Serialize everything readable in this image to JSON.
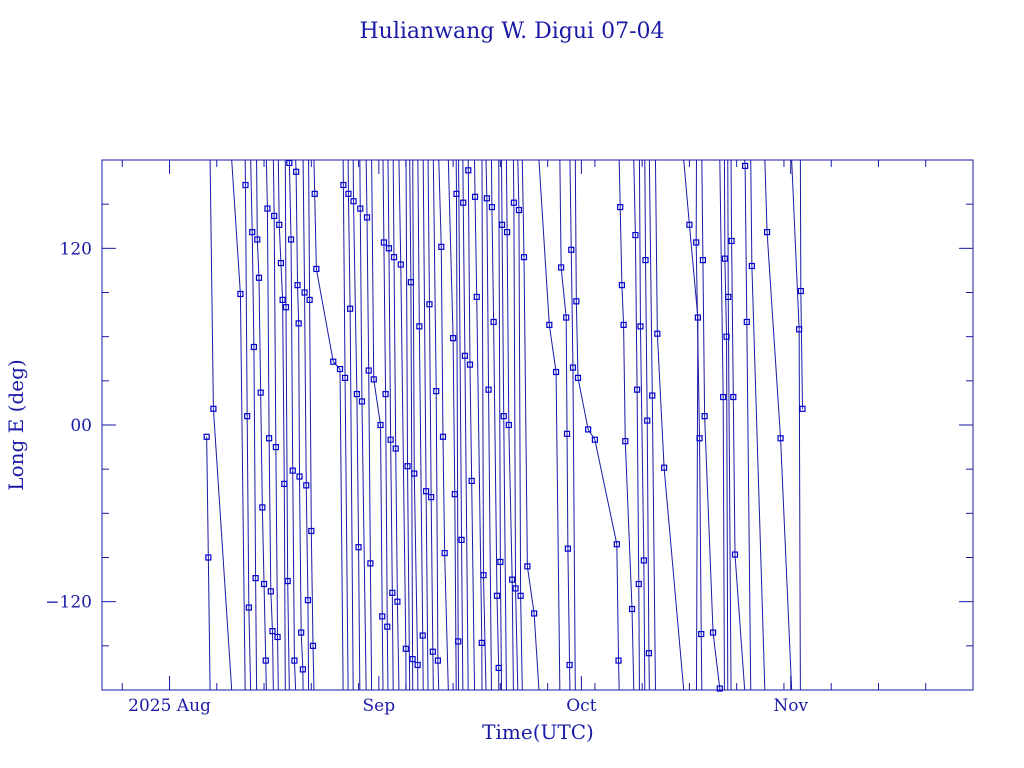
{
  "chart_data": {
    "type": "scatter",
    "title": "Hulianwang W. Digui 07-04",
    "xlabel": "Time(UTC)",
    "ylabel": "Long E (deg)",
    "x_range": [
      "2025-07-22",
      "2025-11-28"
    ],
    "ylim": [
      -180,
      180
    ],
    "y_ticks": [
      -120,
      0,
      120
    ],
    "y_tick_labels": [
      "−120",
      "00",
      "120"
    ],
    "x_ticks": [
      {
        "date": "2025-08-01",
        "label": "2025 Aug"
      },
      {
        "date": "2025-09-01",
        "label": "Sep"
      },
      {
        "date": "2025-10-01",
        "label": "Oct"
      },
      {
        "date": "2025-11-01",
        "label": "Nov"
      }
    ],
    "line_wraps_at_boundaries": true,
    "colors": {
      "axes": "#1a1aa6",
      "line": "#1a1aa6",
      "marker": "#0000cc"
    },
    "series": [
      {
        "points": [
          [
            "2025-08-06T12",
            -8
          ],
          [
            "2025-08-06T18",
            -90
          ],
          [
            "2025-08-07T12",
            11
          ],
          [
            "2025-08-11T12",
            89
          ],
          [
            "2025-08-12T06",
            163
          ],
          [
            "2025-08-12T12",
            6
          ],
          [
            "2025-08-12T18",
            -124
          ],
          [
            "2025-08-13T06",
            131
          ],
          [
            "2025-08-13T12",
            53
          ],
          [
            "2025-08-13T18",
            -104
          ],
          [
            "2025-08-14T00",
            126
          ],
          [
            "2025-08-14T06",
            100
          ],
          [
            "2025-08-14T12",
            22
          ],
          [
            "2025-08-14T18",
            -56
          ],
          [
            "2025-08-15T00",
            -108
          ],
          [
            "2025-08-15T06",
            -160
          ],
          [
            "2025-08-15T12",
            147
          ],
          [
            "2025-08-15T18",
            -9
          ],
          [
            "2025-08-16T00",
            -113
          ],
          [
            "2025-08-16T06",
            -140
          ],
          [
            "2025-08-16T12",
            142
          ],
          [
            "2025-08-16T18",
            -15
          ],
          [
            "2025-08-17T00",
            -144
          ],
          [
            "2025-08-17T06",
            136
          ],
          [
            "2025-08-17T12",
            110
          ],
          [
            "2025-08-17T18",
            85
          ],
          [
            "2025-08-18T00",
            -40
          ],
          [
            "2025-08-18T06",
            80
          ],
          [
            "2025-08-18T12",
            -106
          ],
          [
            "2025-08-18T18",
            178
          ],
          [
            "2025-08-19T00",
            126
          ],
          [
            "2025-08-19T06",
            -31
          ],
          [
            "2025-08-19T12",
            -160
          ],
          [
            "2025-08-19T18",
            172
          ],
          [
            "2025-08-19T23",
            95
          ],
          [
            "2025-08-20T03",
            69
          ],
          [
            "2025-08-20T06",
            -35
          ],
          [
            "2025-08-20T12",
            -141
          ],
          [
            "2025-08-20T18",
            -166
          ],
          [
            "2025-08-21T00",
            90
          ],
          [
            "2025-08-21T06",
            -41
          ],
          [
            "2025-08-21T12",
            -119
          ],
          [
            "2025-08-21T18",
            85
          ],
          [
            "2025-08-22T00",
            -72
          ],
          [
            "2025-08-22T06",
            -150
          ],
          [
            "2025-08-22T12",
            157
          ],
          [
            "2025-08-22T18",
            106
          ],
          [
            "2025-08-25T06",
            43
          ],
          [
            "2025-08-26T06",
            38
          ],
          [
            "2025-08-26T18",
            163
          ],
          [
            "2025-08-27T00",
            32
          ],
          [
            "2025-08-27T12",
            157
          ],
          [
            "2025-08-27T18",
            79
          ],
          [
            "2025-08-28T06",
            152
          ],
          [
            "2025-08-28T18",
            21
          ],
          [
            "2025-08-29T00",
            -83
          ],
          [
            "2025-08-29T06",
            147
          ],
          [
            "2025-08-29T12",
            16
          ],
          [
            "2025-08-30T06",
            141
          ],
          [
            "2025-08-30T12",
            37
          ],
          [
            "2025-08-30T18",
            -94
          ],
          [
            "2025-08-31T06",
            31
          ],
          [
            "2025-09-01T06",
            0
          ],
          [
            "2025-09-01T12",
            -130
          ],
          [
            "2025-09-01T18",
            124
          ],
          [
            "2025-09-02T00",
            21
          ],
          [
            "2025-09-02T06",
            -137
          ],
          [
            "2025-09-02T12",
            120
          ],
          [
            "2025-09-02T18",
            -10
          ],
          [
            "2025-09-03T00",
            -114
          ],
          [
            "2025-09-03T06",
            114
          ],
          [
            "2025-09-03T12",
            -16
          ],
          [
            "2025-09-03T18",
            -120
          ],
          [
            "2025-09-04T06",
            109
          ],
          [
            "2025-09-05T00",
            -152
          ],
          [
            "2025-09-05T06",
            -28
          ],
          [
            "2025-09-05T18",
            97
          ],
          [
            "2025-09-06T00",
            -159
          ],
          [
            "2025-09-06T06",
            -33
          ],
          [
            "2025-09-06T18",
            -163
          ],
          [
            "2025-09-07T00",
            67
          ],
          [
            "2025-09-07T12",
            -143
          ],
          [
            "2025-09-08T00",
            -45
          ],
          [
            "2025-09-08T12",
            82
          ],
          [
            "2025-09-08T18",
            -49
          ],
          [
            "2025-09-09T00",
            -154
          ],
          [
            "2025-09-09T12",
            23
          ],
          [
            "2025-09-09T18",
            -160
          ],
          [
            "2025-09-10T06",
            121
          ],
          [
            "2025-09-10T12",
            -8
          ],
          [
            "2025-09-10T18",
            -87
          ],
          [
            "2025-09-12T00",
            59
          ],
          [
            "2025-09-12T06",
            -47
          ],
          [
            "2025-09-12T12",
            157
          ],
          [
            "2025-09-12T18",
            -147
          ],
          [
            "2025-09-13T06",
            -78
          ],
          [
            "2025-09-13T12",
            151
          ],
          [
            "2025-09-13T18",
            47
          ],
          [
            "2025-09-14T06",
            173
          ],
          [
            "2025-09-14T12",
            41
          ],
          [
            "2025-09-14T18",
            -38
          ],
          [
            "2025-09-15T06",
            155
          ],
          [
            "2025-09-15T12",
            87
          ],
          [
            "2025-09-16T06",
            -148
          ],
          [
            "2025-09-16T12",
            -102
          ],
          [
            "2025-09-17T00",
            154
          ],
          [
            "2025-09-17T06",
            24
          ],
          [
            "2025-09-17T18",
            148
          ],
          [
            "2025-09-18T00",
            70
          ],
          [
            "2025-09-18T12",
            -116
          ],
          [
            "2025-09-18T18",
            -165
          ],
          [
            "2025-09-19T00",
            -93
          ],
          [
            "2025-09-19T06",
            136
          ],
          [
            "2025-09-19T12",
            6
          ],
          [
            "2025-09-20T00",
            131
          ],
          [
            "2025-09-20T06",
            0
          ],
          [
            "2025-09-20T18",
            -105
          ],
          [
            "2025-09-21T00",
            151
          ],
          [
            "2025-09-21T06",
            -111
          ],
          [
            "2025-09-21T18",
            146
          ],
          [
            "2025-09-22T00",
            -116
          ],
          [
            "2025-09-22T12",
            114
          ],
          [
            "2025-09-23T00",
            -96
          ],
          [
            "2025-09-24T00",
            -128
          ],
          [
            "2025-09-26T06",
            68
          ],
          [
            "2025-09-27T06",
            36
          ],
          [
            "2025-09-28T00",
            107
          ],
          [
            "2025-09-28T18",
            73
          ],
          [
            "2025-09-28T21",
            -6
          ],
          [
            "2025-09-29T00",
            -84
          ],
          [
            "2025-09-29T06",
            -163
          ],
          [
            "2025-09-29T12",
            119
          ],
          [
            "2025-09-29T18",
            39
          ],
          [
            "2025-09-30T06",
            84
          ],
          [
            "2025-09-30T12",
            32
          ],
          [
            "2025-10-02T00",
            -3
          ],
          [
            "2025-10-03T00",
            -10
          ],
          [
            "2025-10-06T06",
            -81
          ],
          [
            "2025-10-06T12",
            -160
          ],
          [
            "2025-10-06T18",
            148
          ],
          [
            "2025-10-07T00",
            95
          ],
          [
            "2025-10-07T06",
            68
          ],
          [
            "2025-10-07T12",
            -11
          ],
          [
            "2025-10-08T12",
            -125
          ],
          [
            "2025-10-09T00",
            129
          ],
          [
            "2025-10-09T06",
            24
          ],
          [
            "2025-10-09T12",
            -108
          ],
          [
            "2025-10-09T18",
            67
          ],
          [
            "2025-10-10T06",
            -92
          ],
          [
            "2025-10-10T12",
            112
          ],
          [
            "2025-10-10T18",
            3
          ],
          [
            "2025-10-11T00",
            -155
          ],
          [
            "2025-10-11T12",
            20
          ],
          [
            "2025-10-12T06",
            62
          ],
          [
            "2025-10-13T06",
            -29
          ],
          [
            "2025-10-17T00",
            136
          ],
          [
            "2025-10-18T06",
            73
          ],
          [
            "2025-10-18T00",
            124
          ],
          [
            "2025-10-18T12",
            -9
          ],
          [
            "2025-10-18T18",
            -142
          ],
          [
            "2025-10-19T00",
            112
          ],
          [
            "2025-10-19T06",
            6
          ],
          [
            "2025-10-20T12",
            -141
          ],
          [
            "2025-10-21T12",
            -179
          ],
          [
            "2025-10-22T00",
            19
          ],
          [
            "2025-10-22T06",
            113
          ],
          [
            "2025-10-22T12",
            60
          ],
          [
            "2025-10-22T18",
            87
          ],
          [
            "2025-10-23T06",
            125
          ],
          [
            "2025-10-23T12",
            19
          ],
          [
            "2025-10-23T18",
            -88
          ],
          [
            "2025-10-25T06",
            176
          ],
          [
            "2025-10-25T12",
            70
          ],
          [
            "2025-10-26T06",
            108
          ],
          [
            "2025-10-28T12",
            131
          ],
          [
            "2025-10-30T12",
            -9
          ],
          [
            "2025-11-02T06",
            65
          ],
          [
            "2025-11-02T12",
            91
          ],
          [
            "2025-11-02T18",
            11
          ]
        ]
      }
    ]
  }
}
